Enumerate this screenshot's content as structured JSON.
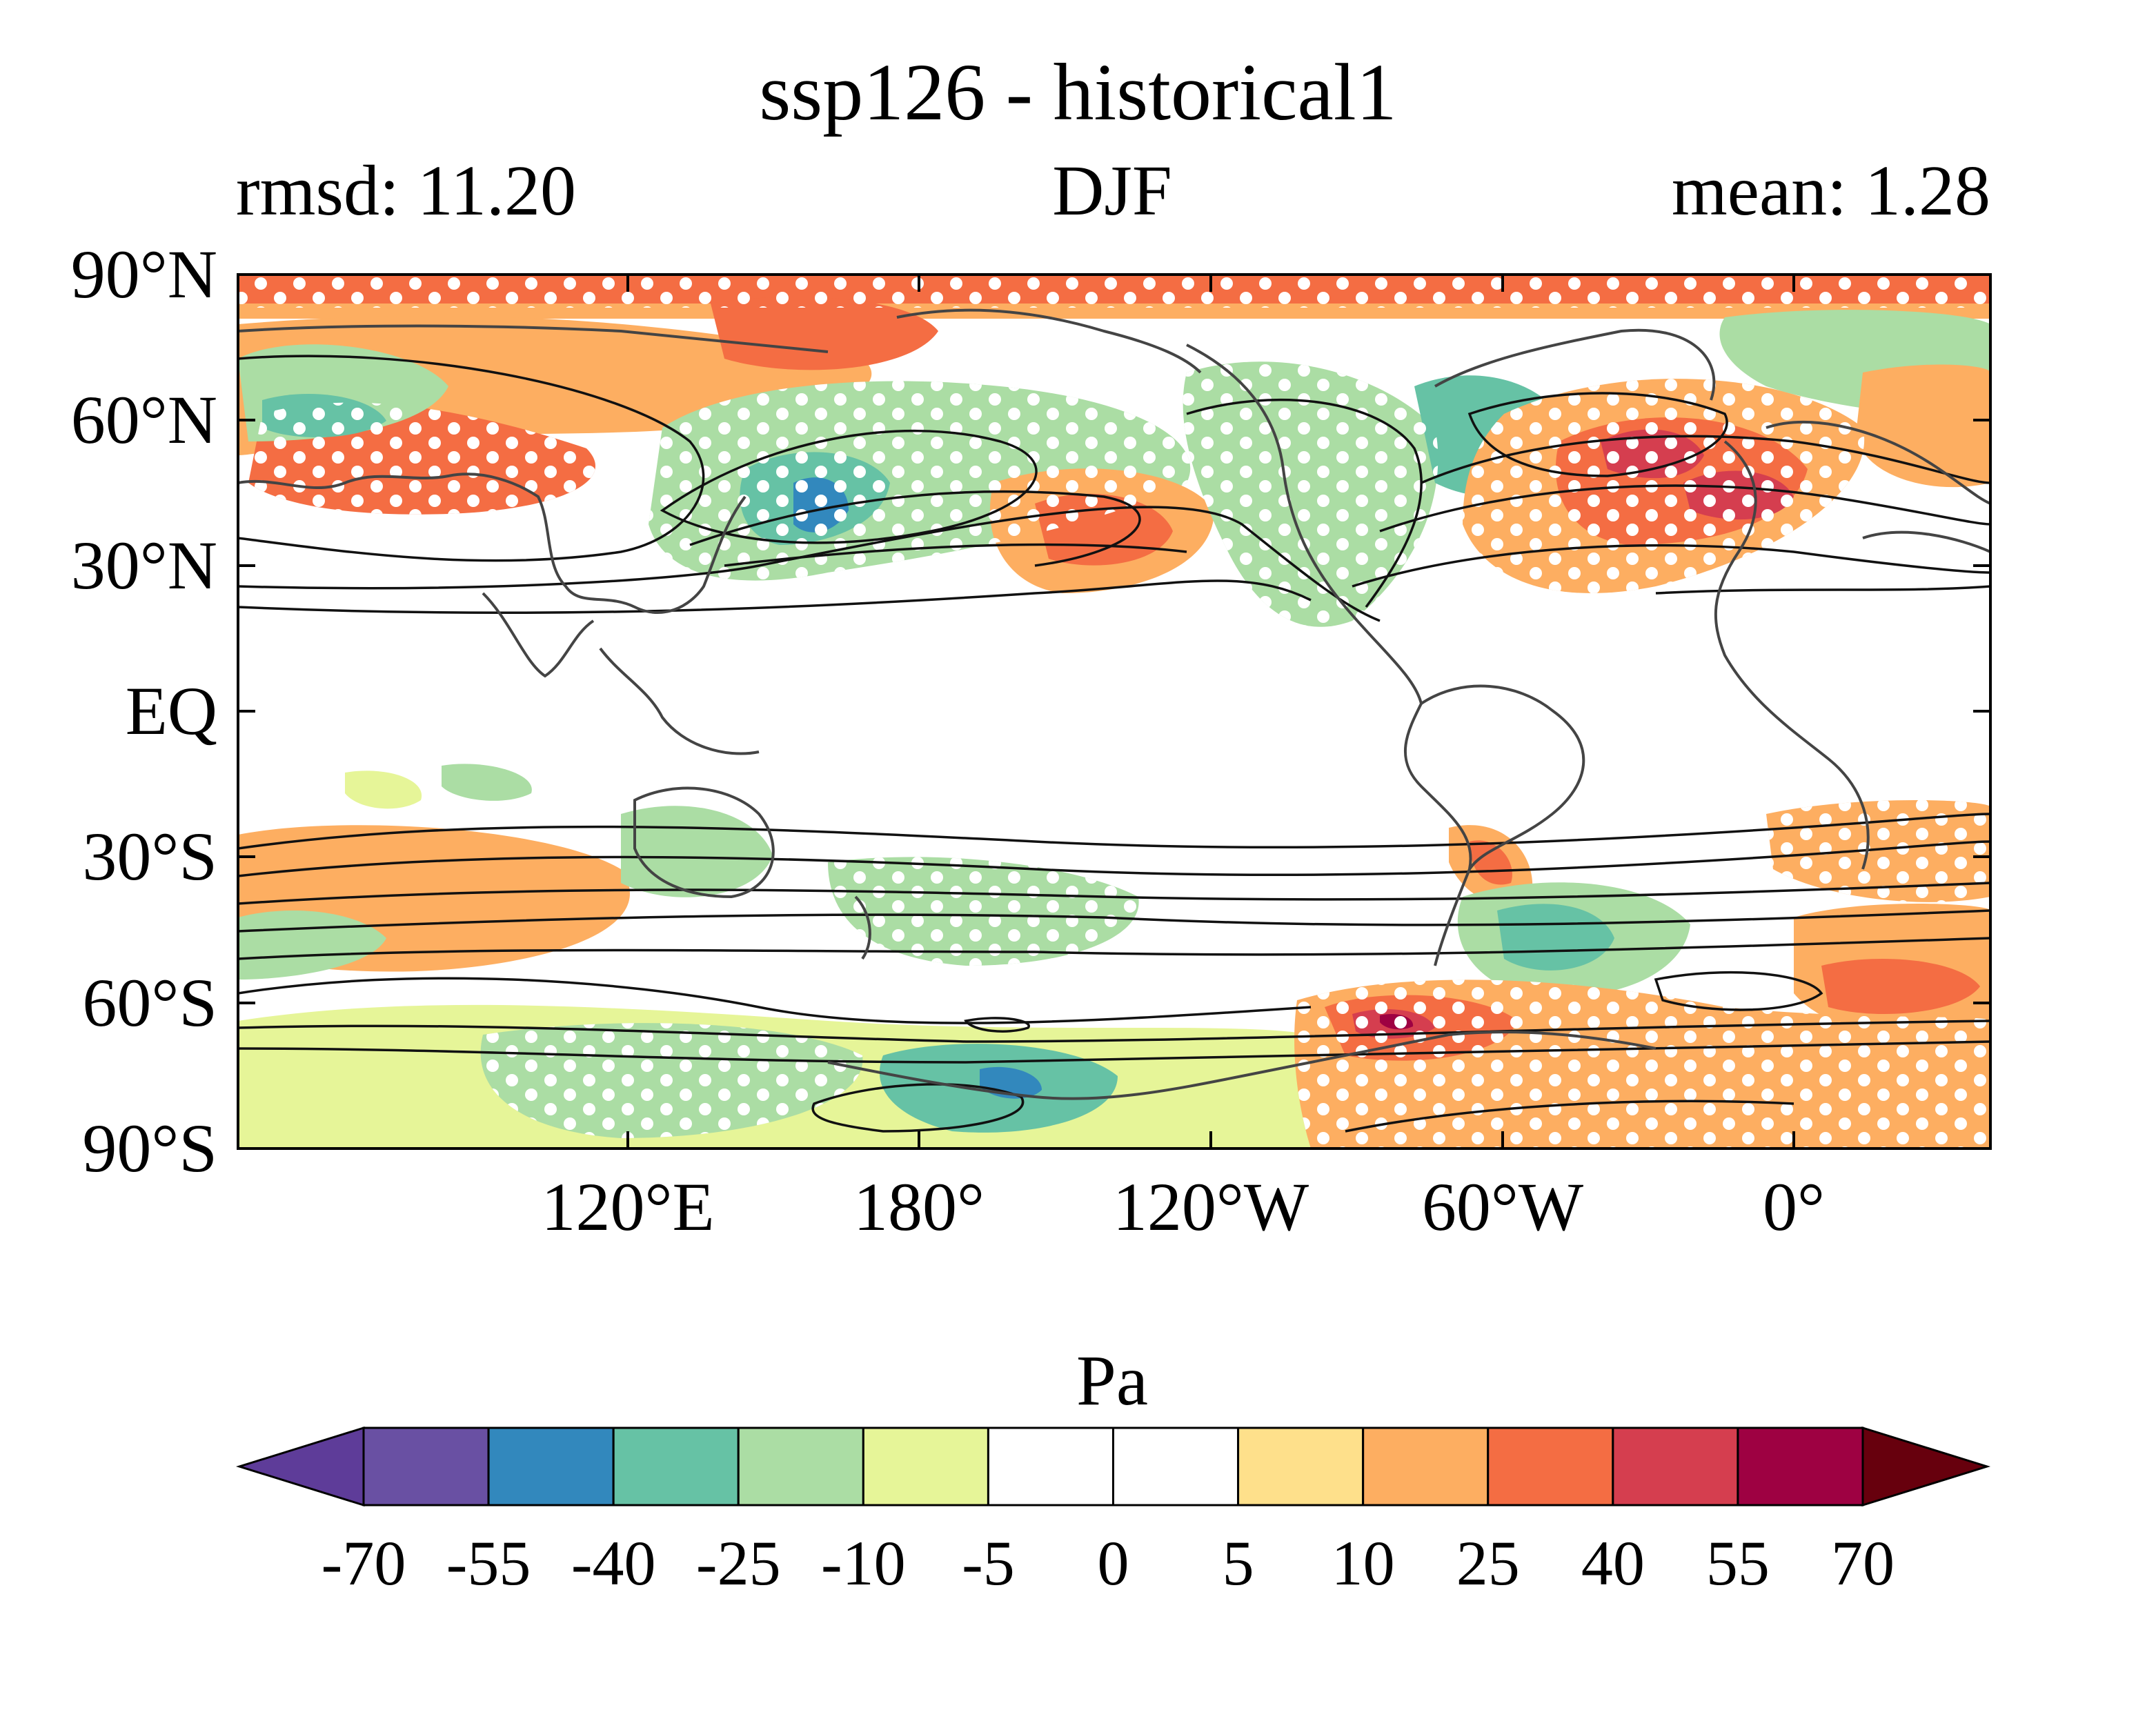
{
  "figure": {
    "title": "ssp126 - historical1",
    "left_subtitle": "rmsd: 11.20",
    "center_subtitle": "DJF",
    "right_subtitle": "mean: 1.28"
  },
  "map": {
    "projection": "equirectangular",
    "lon_range": [
      40,
      400
    ],
    "lat_range": [
      -90,
      90
    ],
    "y_ticks": [
      "90°N",
      "60°N",
      "30°N",
      "EQ",
      "30°S",
      "60°S",
      "90°S"
    ],
    "x_ticks": [
      "120°E",
      "180°",
      "120°W",
      "60°W",
      "0°"
    ],
    "stippling": "white dots mark significant regions",
    "contours": "black lines show climatology"
  },
  "colorbar": {
    "unit": "Pa",
    "levels": [
      "-70",
      "-55",
      "-40",
      "-25",
      "-10",
      "-5",
      "0",
      "5",
      "10",
      "25",
      "40",
      "55",
      "70"
    ],
    "colors": [
      "#5e3c99",
      "#6950a3",
      "#3288bd",
      "#66c2a5",
      "#abdda4",
      "#e6f598",
      "#ffffff",
      "#ffffff",
      "#fee08b",
      "#fdae61",
      "#f46d43",
      "#d53e4f",
      "#9e0142",
      "#67000d"
    ]
  }
}
